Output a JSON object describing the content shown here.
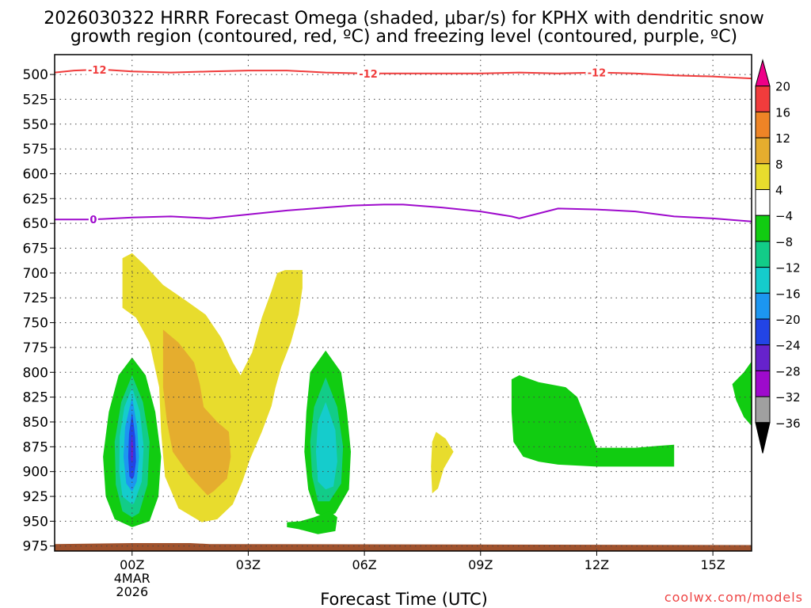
{
  "chart_data": {
    "type": "contour",
    "title_line1": "2026030322 HRRR Forecast Omega (shaded, μbar/s) for KPHX with dendritic snow",
    "title_line2": "growth region (contoured, red, ºC) and freezing level (contoured, purple, ºC)",
    "xlabel": "Forecast Time (UTC)",
    "ylabel": "",
    "watermark": "coolwx.com/models",
    "xlim": [
      -2,
      16
    ],
    "ylim": [
      480,
      980
    ],
    "y_scale": "linear-inverted",
    "x_ticks": [
      {
        "x": 0,
        "label": "00Z",
        "sub1": "4MAR",
        "sub2": "2026"
      },
      {
        "x": 3,
        "label": "03Z",
        "sub1": "",
        "sub2": ""
      },
      {
        "x": 6,
        "label": "06Z",
        "sub1": "",
        "sub2": ""
      },
      {
        "x": 9,
        "label": "09Z",
        "sub1": "",
        "sub2": ""
      },
      {
        "x": 12,
        "label": "12Z",
        "sub1": "",
        "sub2": ""
      },
      {
        "x": 15,
        "label": "15Z",
        "sub1": "",
        "sub2": ""
      }
    ],
    "y_ticks": [
      500,
      525,
      550,
      575,
      600,
      625,
      650,
      675,
      700,
      725,
      750,
      775,
      800,
      825,
      850,
      875,
      900,
      925,
      950,
      975
    ],
    "grid": true,
    "colorbar": {
      "placement": "right",
      "bands": [
        {
          "from": 20,
          "to": 24,
          "color": "#ee0088",
          "arrow": "up"
        },
        {
          "from": 16,
          "to": 20,
          "color": "#f03c3c"
        },
        {
          "from": 12,
          "to": 16,
          "color": "#ee8426"
        },
        {
          "from": 8,
          "to": 12,
          "color": "#e5ad2e"
        },
        {
          "from": 4,
          "to": 8,
          "color": "#e8dc2d"
        },
        {
          "from": -4,
          "to": 4,
          "color": "#ffffff"
        },
        {
          "from": -8,
          "to": -4,
          "color": "#11cc11"
        },
        {
          "from": -12,
          "to": -8,
          "color": "#12cc88"
        },
        {
          "from": -16,
          "to": -12,
          "color": "#15cccc"
        },
        {
          "from": -20,
          "to": -16,
          "color": "#1c96f0"
        },
        {
          "from": -24,
          "to": -20,
          "color": "#2244e6"
        },
        {
          "from": -28,
          "to": -24,
          "color": "#6622cc"
        },
        {
          "from": -32,
          "to": -28,
          "color": "#9e0acc"
        },
        {
          "from": -36,
          "to": -32,
          "color": "#a0a0a0"
        },
        {
          "from": -40,
          "to": -36,
          "color": "#000000",
          "arrow": "down"
        }
      ],
      "labels": [
        "20",
        "16",
        "12",
        "8",
        "4",
        "−4",
        "−8",
        "−12",
        "−16",
        "−20",
        "−24",
        "−28",
        "−32",
        "−36"
      ]
    },
    "contour_lines": [
      {
        "color": "#f03c3c",
        "value_label": "-12",
        "points": [
          [
            -2.0,
            498
          ],
          [
            -1.5,
            496
          ],
          [
            -0.8,
            495
          ],
          [
            0.0,
            497
          ],
          [
            1.0,
            498
          ],
          [
            2.0,
            497
          ],
          [
            3.0,
            496
          ],
          [
            4.0,
            496
          ],
          [
            5.0,
            498
          ],
          [
            6.0,
            499
          ],
          [
            7.0,
            499
          ],
          [
            8.0,
            499
          ],
          [
            9.0,
            499
          ],
          [
            10.0,
            498
          ],
          [
            11.0,
            499
          ],
          [
            12.0,
            498
          ],
          [
            13.0,
            499
          ],
          [
            14.0,
            501
          ],
          [
            15.0,
            502
          ],
          [
            16.0,
            504
          ]
        ],
        "labels_at": [
          [
            -0.9,
            495
          ],
          [
            6.1,
            499
          ],
          [
            12.0,
            498
          ]
        ]
      },
      {
        "color": "#9e0acc",
        "value_label": "0",
        "points": [
          [
            -2.0,
            646
          ],
          [
            -1.0,
            646
          ],
          [
            0.0,
            644
          ],
          [
            1.0,
            643
          ],
          [
            2.0,
            645
          ],
          [
            3.0,
            641
          ],
          [
            4.0,
            637
          ],
          [
            5.0,
            634
          ],
          [
            5.7,
            632
          ],
          [
            6.5,
            631
          ],
          [
            7.0,
            631
          ],
          [
            8.0,
            634
          ],
          [
            9.0,
            638
          ],
          [
            9.8,
            643
          ],
          [
            10.0,
            645
          ],
          [
            10.5,
            640
          ],
          [
            11.0,
            635
          ],
          [
            12.0,
            636
          ],
          [
            13.0,
            638
          ],
          [
            14.0,
            643
          ],
          [
            15.0,
            645
          ],
          [
            16.0,
            648
          ]
        ],
        "labels_at": [
          [
            -1.0,
            646
          ]
        ]
      }
    ],
    "shaded_regions": [
      {
        "value_band": "4 to 8",
        "color": "#e8dc2d",
        "points": [
          [
            -0.25,
            685
          ],
          [
            0.0,
            680
          ],
          [
            0.35,
            693
          ],
          [
            0.8,
            712
          ],
          [
            1.4,
            728
          ],
          [
            1.9,
            742
          ],
          [
            2.3,
            765
          ],
          [
            2.6,
            790
          ],
          [
            2.8,
            803
          ],
          [
            3.1,
            780
          ],
          [
            3.35,
            745
          ],
          [
            3.6,
            718
          ],
          [
            3.75,
            700
          ],
          [
            3.95,
            697
          ],
          [
            4.4,
            697
          ],
          [
            4.4,
            715
          ],
          [
            4.3,
            742
          ],
          [
            4.1,
            770
          ],
          [
            3.85,
            795
          ],
          [
            3.7,
            816
          ],
          [
            3.6,
            834
          ],
          [
            3.35,
            860
          ],
          [
            3.05,
            887
          ],
          [
            2.85,
            910
          ],
          [
            2.6,
            933
          ],
          [
            2.2,
            948
          ],
          [
            1.8,
            951
          ],
          [
            1.2,
            937
          ],
          [
            0.85,
            905
          ],
          [
            0.75,
            860
          ],
          [
            0.7,
            815
          ],
          [
            0.45,
            770
          ],
          [
            0.1,
            745
          ],
          [
            -0.25,
            735
          ]
        ]
      },
      {
        "value_band": "4 to 8",
        "color": "#e8dc2d",
        "points": [
          [
            7.85,
            860
          ],
          [
            8.1,
            867
          ],
          [
            8.3,
            880
          ],
          [
            8.05,
            897
          ],
          [
            7.9,
            917
          ],
          [
            7.75,
            922
          ],
          [
            7.72,
            895
          ],
          [
            7.75,
            870
          ]
        ]
      },
      {
        "value_band": "8 to 12",
        "color": "#e5ad2e",
        "points": [
          [
            0.8,
            757
          ],
          [
            1.2,
            770
          ],
          [
            1.6,
            790
          ],
          [
            1.75,
            812
          ],
          [
            1.85,
            835
          ],
          [
            2.2,
            850
          ],
          [
            2.5,
            860
          ],
          [
            2.55,
            885
          ],
          [
            2.45,
            907
          ],
          [
            2.1,
            920
          ],
          [
            1.95,
            924
          ],
          [
            1.5,
            905
          ],
          [
            1.05,
            880
          ],
          [
            0.9,
            850
          ],
          [
            0.8,
            815
          ]
        ]
      },
      {
        "value_band": "-8 to -4",
        "color": "#11cc11",
        "points": [
          [
            0.0,
            785
          ],
          [
            0.35,
            803
          ],
          [
            0.6,
            840
          ],
          [
            0.75,
            885
          ],
          [
            0.68,
            925
          ],
          [
            0.45,
            950
          ],
          [
            0.0,
            956
          ],
          [
            -0.45,
            948
          ],
          [
            -0.68,
            925
          ],
          [
            -0.75,
            885
          ],
          [
            -0.6,
            840
          ],
          [
            -0.35,
            803
          ]
        ]
      },
      {
        "value_band": "-12 to -8",
        "color": "#12cc88",
        "points": [
          [
            0.0,
            803
          ],
          [
            0.28,
            830
          ],
          [
            0.45,
            870
          ],
          [
            0.4,
            913
          ],
          [
            0.18,
            942
          ],
          [
            0.0,
            946
          ],
          [
            -0.25,
            940
          ],
          [
            -0.42,
            913
          ],
          [
            -0.45,
            870
          ],
          [
            -0.28,
            830
          ]
        ]
      },
      {
        "value_band": "-16 to -12",
        "color": "#15cccc",
        "points": [
          [
            0.0,
            815
          ],
          [
            0.2,
            840
          ],
          [
            0.3,
            875
          ],
          [
            0.25,
            910
          ],
          [
            0.05,
            932
          ],
          [
            0.0,
            933
          ],
          [
            -0.25,
            925
          ],
          [
            -0.33,
            900
          ],
          [
            -0.32,
            865
          ],
          [
            -0.2,
            835
          ]
        ]
      },
      {
        "value_band": "-20 to -16",
        "color": "#1c96f0",
        "points": [
          [
            0.0,
            825
          ],
          [
            0.13,
            855
          ],
          [
            0.18,
            885
          ],
          [
            0.12,
            910
          ],
          [
            0.0,
            920
          ],
          [
            -0.15,
            912
          ],
          [
            -0.22,
            885
          ],
          [
            -0.18,
            855
          ]
        ]
      },
      {
        "value_band": "-24 to -20",
        "color": "#2244e6",
        "points": [
          [
            0.0,
            840
          ],
          [
            0.08,
            865
          ],
          [
            0.1,
            890
          ],
          [
            0.05,
            905
          ],
          [
            0.0,
            908
          ],
          [
            -0.07,
            905
          ],
          [
            -0.1,
            885
          ],
          [
            -0.08,
            862
          ]
        ]
      },
      {
        "value_band": "-28 to -24",
        "color": "#6622cc",
        "points": [
          [
            0.0,
            862
          ],
          [
            0.03,
            875
          ],
          [
            0.02,
            888
          ],
          [
            0.0,
            890
          ],
          [
            -0.03,
            888
          ],
          [
            -0.03,
            872
          ]
        ]
      },
      {
        "value_band": "-8 to -4",
        "color": "#11cc11",
        "points": [
          [
            5.0,
            778
          ],
          [
            5.4,
            800
          ],
          [
            5.55,
            840
          ],
          [
            5.65,
            880
          ],
          [
            5.6,
            918
          ],
          [
            5.25,
            942
          ],
          [
            5.0,
            946
          ],
          [
            4.75,
            942
          ],
          [
            4.55,
            918
          ],
          [
            4.45,
            880
          ],
          [
            4.5,
            840
          ],
          [
            4.6,
            800
          ]
        ]
      },
      {
        "value_band": "-12 to -8",
        "color": "#12cc88",
        "points": [
          [
            5.0,
            805
          ],
          [
            5.3,
            835
          ],
          [
            5.45,
            875
          ],
          [
            5.4,
            912
          ],
          [
            5.1,
            930
          ],
          [
            4.8,
            930
          ],
          [
            4.65,
            905
          ],
          [
            4.6,
            870
          ],
          [
            4.7,
            835
          ]
        ]
      },
      {
        "value_band": "-16 to -12",
        "color": "#15cccc",
        "points": [
          [
            5.0,
            830
          ],
          [
            5.25,
            858
          ],
          [
            5.3,
            890
          ],
          [
            5.2,
            915
          ],
          [
            5.0,
            918
          ],
          [
            4.8,
            910
          ],
          [
            4.75,
            880
          ],
          [
            4.8,
            850
          ]
        ]
      },
      {
        "value_band": "-8 to -4",
        "color": "#11cc11",
        "points": [
          [
            4.35,
            950
          ],
          [
            4.7,
            946
          ],
          [
            5.1,
            940
          ],
          [
            5.3,
            946
          ],
          [
            5.25,
            960
          ],
          [
            4.8,
            963
          ],
          [
            4.3,
            958
          ],
          [
            4.0,
            956
          ],
          [
            4.0,
            951
          ]
        ]
      },
      {
        "value_band": "-8 to -4",
        "color": "#11cc11",
        "points": [
          [
            9.8,
            807
          ],
          [
            10.0,
            803
          ],
          [
            10.5,
            810
          ],
          [
            11.2,
            815
          ],
          [
            11.5,
            825
          ],
          [
            11.8,
            855
          ],
          [
            12.0,
            876
          ],
          [
            13.0,
            876
          ],
          [
            13.6,
            874
          ],
          [
            14.0,
            873
          ],
          [
            14.0,
            895
          ],
          [
            12.0,
            895
          ],
          [
            11.0,
            893
          ],
          [
            10.5,
            890
          ],
          [
            10.1,
            885
          ],
          [
            9.85,
            870
          ],
          [
            9.8,
            840
          ]
        ]
      },
      {
        "value_band": "-8 to -4",
        "color": "#11cc11",
        "points": [
          [
            16.0,
            789
          ],
          [
            15.8,
            800
          ],
          [
            15.5,
            812
          ],
          [
            15.6,
            828
          ],
          [
            15.8,
            845
          ],
          [
            16.0,
            854
          ]
        ]
      }
    ],
    "ground": {
      "color": "#a0522d",
      "top": [
        [
          -2.0,
          973
        ],
        [
          0.0,
          972
        ],
        [
          1.5,
          972
        ],
        [
          2.0,
          973
        ],
        [
          16.0,
          974
        ]
      ]
    }
  }
}
